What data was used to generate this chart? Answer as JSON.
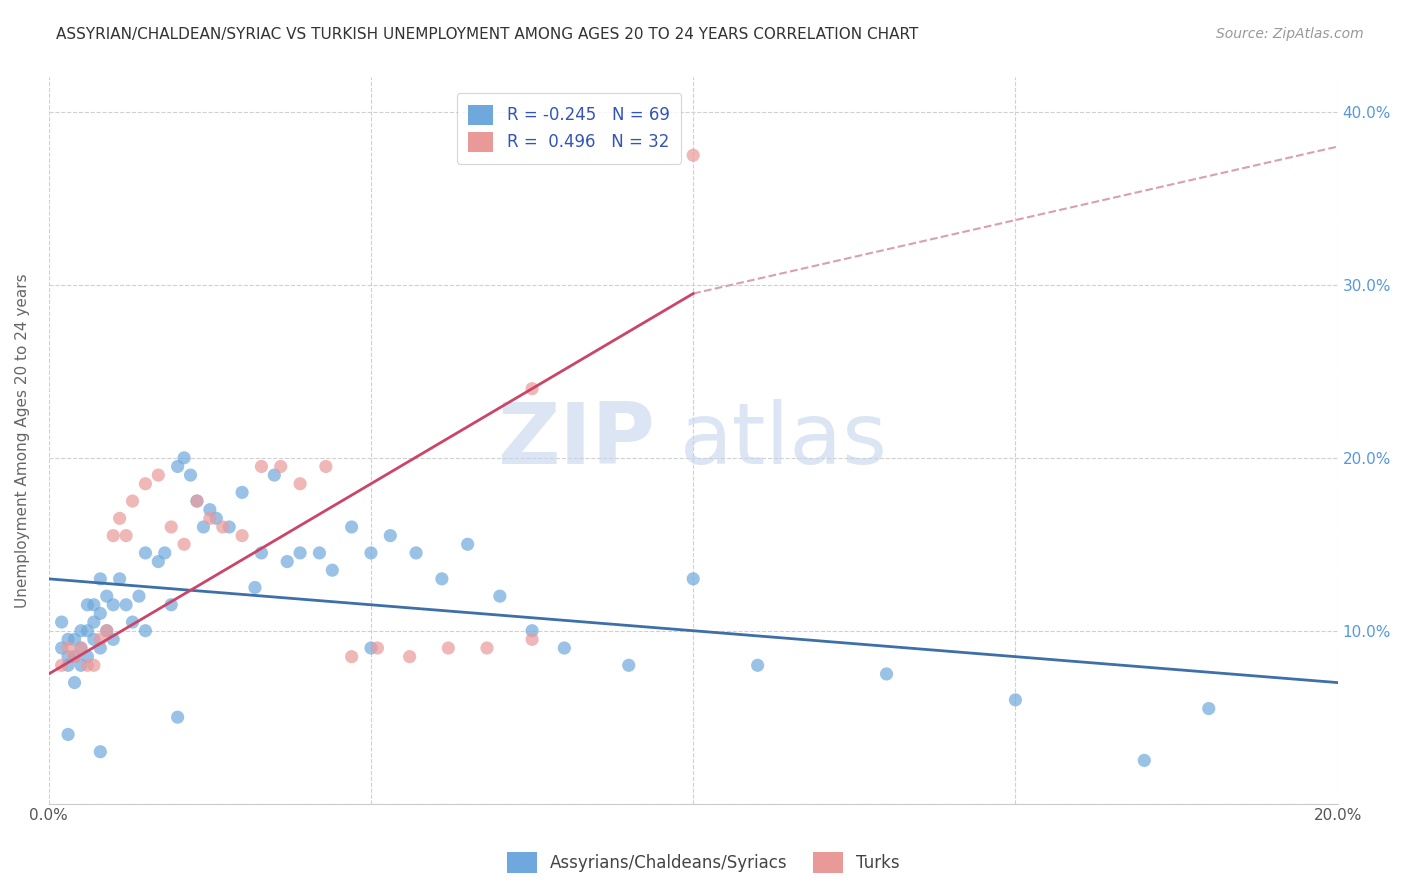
{
  "title": "ASSYRIAN/CHALDEAN/SYRIAC VS TURKISH UNEMPLOYMENT AMONG AGES 20 TO 24 YEARS CORRELATION CHART",
  "source": "Source: ZipAtlas.com",
  "ylabel": "Unemployment Among Ages 20 to 24 years",
  "xlim": [
    0.0,
    0.2
  ],
  "ylim": [
    0.0,
    0.42
  ],
  "xticks": [
    0.0,
    0.05,
    0.1,
    0.15,
    0.2
  ],
  "yticks": [
    0.0,
    0.1,
    0.2,
    0.3,
    0.4
  ],
  "legend_r1": "R = -0.245",
  "legend_n1": "N = 69",
  "legend_r2": "R =  0.496",
  "legend_n2": "N = 32",
  "color_blue": "#6fa8dc",
  "color_pink": "#ea9999",
  "color_blue_line": "#3d6fa8",
  "color_pink_line": "#cc4466",
  "color_dashed": "#d8a0b0",
  "watermark_zip": "ZIP",
  "watermark_atlas": "atlas",
  "blue_scatter_x": [
    0.002,
    0.002,
    0.003,
    0.003,
    0.003,
    0.004,
    0.004,
    0.004,
    0.005,
    0.005,
    0.005,
    0.006,
    0.006,
    0.006,
    0.007,
    0.007,
    0.007,
    0.008,
    0.008,
    0.008,
    0.009,
    0.009,
    0.01,
    0.01,
    0.011,
    0.012,
    0.013,
    0.014,
    0.015,
    0.015,
    0.017,
    0.018,
    0.019,
    0.02,
    0.021,
    0.022,
    0.023,
    0.024,
    0.025,
    0.026,
    0.028,
    0.03,
    0.032,
    0.033,
    0.035,
    0.037,
    0.039,
    0.042,
    0.044,
    0.047,
    0.05,
    0.053,
    0.057,
    0.061,
    0.065,
    0.07,
    0.075,
    0.08,
    0.09,
    0.1,
    0.11,
    0.13,
    0.15,
    0.17,
    0.18,
    0.003,
    0.008,
    0.02,
    0.05
  ],
  "blue_scatter_y": [
    0.09,
    0.105,
    0.08,
    0.085,
    0.095,
    0.07,
    0.085,
    0.095,
    0.08,
    0.09,
    0.1,
    0.085,
    0.1,
    0.115,
    0.095,
    0.105,
    0.115,
    0.09,
    0.11,
    0.13,
    0.1,
    0.12,
    0.095,
    0.115,
    0.13,
    0.115,
    0.105,
    0.12,
    0.1,
    0.145,
    0.14,
    0.145,
    0.115,
    0.195,
    0.2,
    0.19,
    0.175,
    0.16,
    0.17,
    0.165,
    0.16,
    0.18,
    0.125,
    0.145,
    0.19,
    0.14,
    0.145,
    0.145,
    0.135,
    0.16,
    0.145,
    0.155,
    0.145,
    0.13,
    0.15,
    0.12,
    0.1,
    0.09,
    0.08,
    0.13,
    0.08,
    0.075,
    0.06,
    0.025,
    0.055,
    0.04,
    0.03,
    0.05,
    0.09
  ],
  "pink_scatter_x": [
    0.002,
    0.003,
    0.004,
    0.005,
    0.006,
    0.007,
    0.008,
    0.009,
    0.01,
    0.011,
    0.012,
    0.013,
    0.015,
    0.017,
    0.019,
    0.021,
    0.023,
    0.025,
    0.027,
    0.03,
    0.033,
    0.036,
    0.039,
    0.043,
    0.047,
    0.051,
    0.056,
    0.062,
    0.068,
    0.075,
    0.075,
    0.1
  ],
  "pink_scatter_y": [
    0.08,
    0.09,
    0.085,
    0.09,
    0.08,
    0.08,
    0.095,
    0.1,
    0.155,
    0.165,
    0.155,
    0.175,
    0.185,
    0.19,
    0.16,
    0.15,
    0.175,
    0.165,
    0.16,
    0.155,
    0.195,
    0.195,
    0.185,
    0.195,
    0.085,
    0.09,
    0.085,
    0.09,
    0.09,
    0.095,
    0.24,
    0.375
  ],
  "blue_line_x": [
    0.0,
    0.2
  ],
  "blue_line_y": [
    0.13,
    0.07
  ],
  "pink_line_x": [
    0.0,
    0.1
  ],
  "pink_line_y": [
    0.075,
    0.295
  ],
  "dashed_line_x": [
    0.1,
    0.2
  ],
  "dashed_line_y": [
    0.295,
    0.38
  ],
  "background_color": "#ffffff",
  "grid_color": "#d0d0d0"
}
